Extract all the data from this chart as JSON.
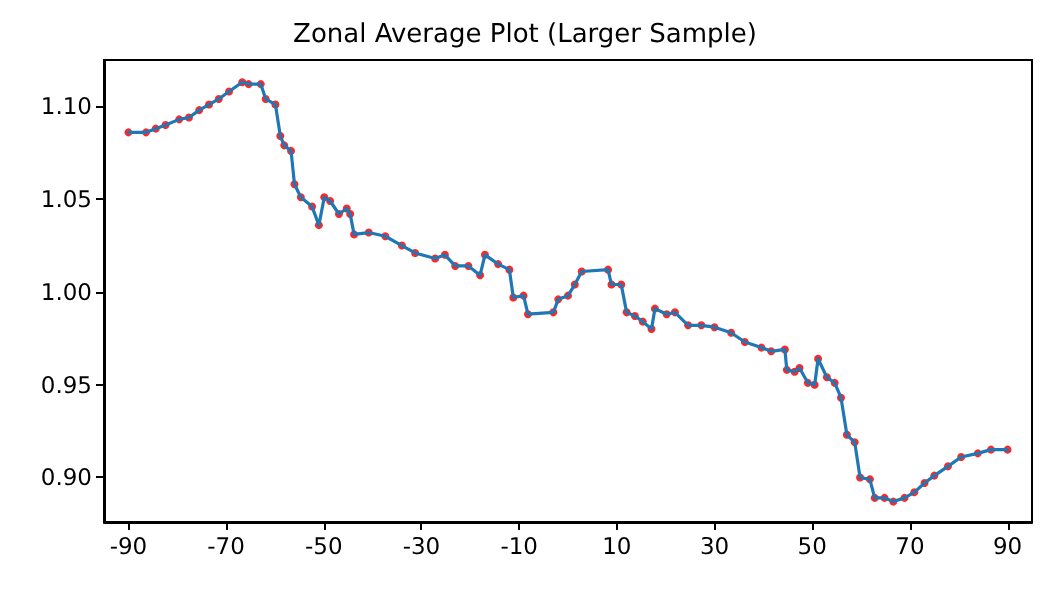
{
  "chart_data": {
    "type": "line",
    "title": "Zonal Average Plot (Larger Sample)",
    "xlim": [
      -95,
      95
    ],
    "xticks": [
      -90,
      -70,
      -50,
      -30,
      -10,
      10,
      30,
      50,
      70,
      90
    ],
    "ylim": [
      0.876,
      1.125
    ],
    "yticks": [
      {
        "value": 0.9,
        "label": "0.90"
      },
      {
        "value": 0.95,
        "label": "0.95"
      },
      {
        "value": 1.0,
        "label": "1.00"
      },
      {
        "value": 1.05,
        "label": "1.05"
      },
      {
        "value": 1.1,
        "label": "1.10"
      }
    ],
    "grid": false,
    "series": [
      {
        "type": "scatter",
        "color": "#ff0000",
        "marker": "circle",
        "x": [
          -90,
          -86.4,
          -84.4,
          -82.4,
          -79.6,
          -77.6,
          -75.5,
          -73.5,
          -71.5,
          -69.4,
          -66.7,
          -65.4,
          -62.9,
          -61.9,
          -59.9,
          -58.9,
          -58.1,
          -56.7,
          -56,
          -54.7,
          -52.4,
          -51,
          -49.9,
          -48.7,
          -46.9,
          -45.3,
          -44.6,
          -43.8,
          -40.8,
          -37.4,
          -34,
          -31.3,
          -27.2,
          -25.2,
          -23.1,
          -20.4,
          -18,
          -17,
          -14.3,
          -12,
          -11.2,
          -9.1,
          -8.2,
          -3,
          -2,
          0,
          1.4,
          2.8,
          8.2,
          8.9,
          10.9,
          12,
          13.7,
          15.3,
          17.1,
          17.8,
          20.2,
          21.9,
          24.6,
          27.3,
          30,
          33.4,
          36.2,
          39.6,
          41.6,
          44.4,
          44.8,
          46.4,
          47.4,
          49.1,
          50.5,
          51.2,
          53,
          54.6,
          55.9,
          57.1,
          58.7,
          59.8,
          61.8,
          62.8,
          64.8,
          66.6,
          68.9,
          70.9,
          73,
          75,
          77.8,
          80.5,
          83.9,
          86.6,
          90
        ],
        "values": [
          1.086,
          1.086,
          1.088,
          1.09,
          1.093,
          1.094,
          1.098,
          1.101,
          1.104,
          1.108,
          1.113,
          1.112,
          1.112,
          1.104,
          1.101,
          1.084,
          1.079,
          1.076,
          1.058,
          1.051,
          1.046,
          1.036,
          1.051,
          1.049,
          1.042,
          1.045,
          1.042,
          1.031,
          1.032,
          1.03,
          1.025,
          1.021,
          1.018,
          1.02,
          1.014,
          1.014,
          1.009,
          1.02,
          1.015,
          1.012,
          0.997,
          0.998,
          0.988,
          0.989,
          0.996,
          0.998,
          1.004,
          1.011,
          1.012,
          1.004,
          1.004,
          0.989,
          0.987,
          0.984,
          0.98,
          0.991,
          0.988,
          0.989,
          0.982,
          0.982,
          0.981,
          0.978,
          0.973,
          0.97,
          0.968,
          0.969,
          0.958,
          0.957,
          0.959,
          0.951,
          0.95,
          0.964,
          0.954,
          0.951,
          0.943,
          0.923,
          0.919,
          0.9,
          0.899,
          0.889,
          0.889,
          0.887,
          0.889,
          0.892,
          0.897,
          0.901,
          0.906,
          0.911,
          0.913,
          0.915,
          0.915
        ]
      },
      {
        "color": "#1f77b4",
        "marker": "none",
        "line_style": "solid",
        "x": [
          -90,
          -86.4,
          -84.4,
          -82.4,
          -79.6,
          -77.6,
          -75.5,
          -73.5,
          -71.5,
          -69.4,
          -66.7,
          -65.4,
          -62.9,
          -61.9,
          -59.9,
          -58.9,
          -58.1,
          -56.7,
          -56,
          -54.7,
          -52.4,
          -51,
          -49.9,
          -48.7,
          -46.9,
          -45.3,
          -44.6,
          -43.8,
          -40.8,
          -37.4,
          -34,
          -31.3,
          -27.2,
          -25.2,
          -23.1,
          -20.4,
          -18,
          -17,
          -14.3,
          -12,
          -11.2,
          -9.1,
          -8.2,
          -3,
          -2,
          0,
          1.4,
          2.8,
          8.2,
          8.9,
          10.9,
          12,
          13.7,
          15.3,
          17.1,
          17.8,
          20.2,
          21.9,
          24.6,
          27.3,
          30,
          33.4,
          36.2,
          39.6,
          41.6,
          44.4,
          44.8,
          46.4,
          47.4,
          49.1,
          50.5,
          51.2,
          53,
          54.6,
          55.9,
          57.1,
          58.7,
          59.8,
          61.8,
          62.8,
          64.8,
          66.6,
          68.9,
          70.9,
          73,
          75,
          77.8,
          80.5,
          83.9,
          86.6,
          90
        ],
        "values": [
          1.086,
          1.086,
          1.088,
          1.09,
          1.093,
          1.094,
          1.098,
          1.101,
          1.104,
          1.108,
          1.113,
          1.112,
          1.112,
          1.104,
          1.101,
          1.084,
          1.079,
          1.076,
          1.058,
          1.051,
          1.046,
          1.036,
          1.051,
          1.049,
          1.042,
          1.045,
          1.042,
          1.031,
          1.032,
          1.03,
          1.025,
          1.021,
          1.018,
          1.02,
          1.014,
          1.014,
          1.009,
          1.02,
          1.015,
          1.012,
          0.997,
          0.998,
          0.988,
          0.989,
          0.996,
          0.998,
          1.004,
          1.011,
          1.012,
          1.004,
          1.004,
          0.989,
          0.987,
          0.984,
          0.98,
          0.991,
          0.988,
          0.989,
          0.982,
          0.982,
          0.981,
          0.978,
          0.973,
          0.97,
          0.968,
          0.969,
          0.958,
          0.957,
          0.959,
          0.951,
          0.95,
          0.964,
          0.954,
          0.951,
          0.943,
          0.923,
          0.919,
          0.9,
          0.899,
          0.889,
          0.889,
          0.887,
          0.889,
          0.892,
          0.897,
          0.901,
          0.906,
          0.911,
          0.913,
          0.915,
          0.915
        ]
      }
    ]
  }
}
